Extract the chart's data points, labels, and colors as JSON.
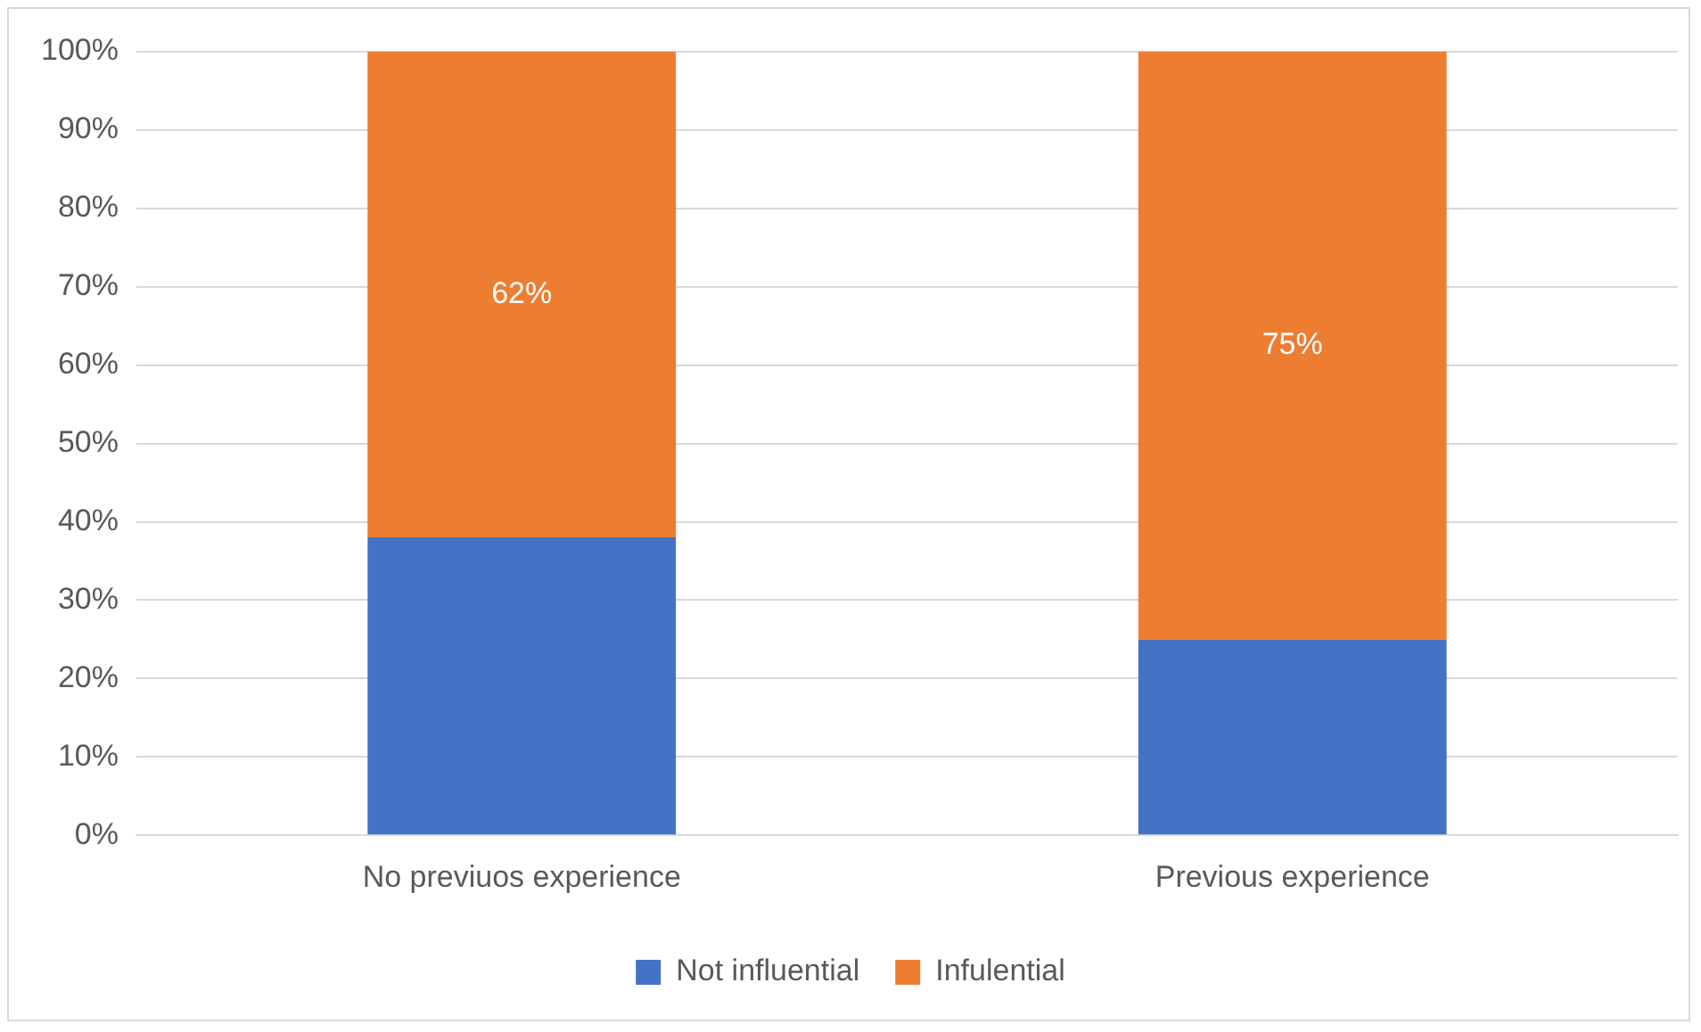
{
  "chart_data": {
    "type": "bar",
    "stacked": true,
    "categories": [
      "No previuos experience",
      "Previous experience"
    ],
    "series": [
      {
        "name": "Not influential",
        "color": "#4472c4",
        "values": [
          38,
          25
        ]
      },
      {
        "name": "Infulential",
        "color": "#ed7d31",
        "values": [
          62,
          75
        ],
        "value_labels": [
          "62%",
          "75%"
        ]
      }
    ],
    "ylim": [
      0,
      100
    ],
    "yticks": [
      {
        "value": 0,
        "label": "0%"
      },
      {
        "value": 10,
        "label": "10%"
      },
      {
        "value": 20,
        "label": "20%"
      },
      {
        "value": 30,
        "label": "30%"
      },
      {
        "value": 40,
        "label": "40%"
      },
      {
        "value": 50,
        "label": "50%"
      },
      {
        "value": 60,
        "label": "60%"
      },
      {
        "value": 70,
        "label": "70%"
      },
      {
        "value": 80,
        "label": "80%"
      },
      {
        "value": 90,
        "label": "90%"
      },
      {
        "value": 100,
        "label": "100%"
      }
    ],
    "grid": "y",
    "legend": "bottom"
  }
}
